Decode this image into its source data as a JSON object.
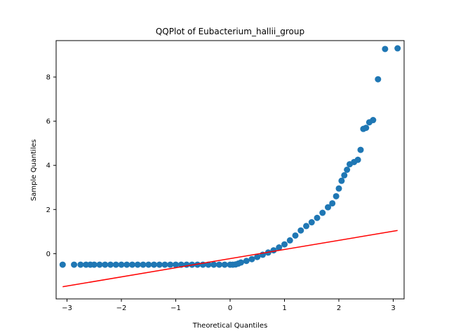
{
  "chart_data": {
    "type": "scatter",
    "title": "QQPlot of Eubacterium_hallii_group",
    "xlabel": "Theoretical Quantiles",
    "ylabel": "Sample Quantiles",
    "xlim": [
      -3.2,
      3.2
    ],
    "ylim": [
      -2.05,
      9.65
    ],
    "xticks": [
      -3,
      -2,
      -1,
      0,
      1,
      2,
      3
    ],
    "yticks": [
      0,
      2,
      4,
      6,
      8
    ],
    "grid": false,
    "legend": "none",
    "colors": {
      "points": "#1f77b4",
      "line": "#ff0000"
    },
    "points": [
      [
        -3.08,
        -0.5
      ],
      [
        -2.87,
        -0.5
      ],
      [
        -2.75,
        -0.5
      ],
      [
        -2.65,
        -0.5
      ],
      [
        -2.57,
        -0.5
      ],
      [
        -2.5,
        -0.5
      ],
      [
        -2.4,
        -0.5
      ],
      [
        -2.3,
        -0.5
      ],
      [
        -2.2,
        -0.5
      ],
      [
        -2.1,
        -0.5
      ],
      [
        -2.0,
        -0.5
      ],
      [
        -1.9,
        -0.5
      ],
      [
        -1.8,
        -0.5
      ],
      [
        -1.7,
        -0.5
      ],
      [
        -1.6,
        -0.5
      ],
      [
        -1.5,
        -0.5
      ],
      [
        -1.4,
        -0.5
      ],
      [
        -1.3,
        -0.5
      ],
      [
        -1.2,
        -0.5
      ],
      [
        -1.1,
        -0.5
      ],
      [
        -1.0,
        -0.5
      ],
      [
        -0.9,
        -0.5
      ],
      [
        -0.8,
        -0.5
      ],
      [
        -0.7,
        -0.5
      ],
      [
        -0.6,
        -0.5
      ],
      [
        -0.5,
        -0.5
      ],
      [
        -0.4,
        -0.5
      ],
      [
        -0.3,
        -0.5
      ],
      [
        -0.2,
        -0.5
      ],
      [
        -0.1,
        -0.5
      ],
      [
        0.0,
        -0.5
      ],
      [
        0.05,
        -0.5
      ],
      [
        0.1,
        -0.49
      ],
      [
        0.15,
        -0.45
      ],
      [
        0.2,
        -0.4
      ],
      [
        0.3,
        -0.33
      ],
      [
        0.4,
        -0.25
      ],
      [
        0.5,
        -0.15
      ],
      [
        0.6,
        -0.05
      ],
      [
        0.7,
        0.05
      ],
      [
        0.8,
        0.15
      ],
      [
        0.9,
        0.28
      ],
      [
        1.0,
        0.42
      ],
      [
        1.1,
        0.6
      ],
      [
        1.2,
        0.82
      ],
      [
        1.3,
        1.05
      ],
      [
        1.4,
        1.25
      ],
      [
        1.5,
        1.42
      ],
      [
        1.6,
        1.62
      ],
      [
        1.7,
        1.85
      ],
      [
        1.8,
        2.1
      ],
      [
        1.88,
        2.28
      ],
      [
        1.95,
        2.6
      ],
      [
        2.0,
        2.95
      ],
      [
        2.05,
        3.3
      ],
      [
        2.1,
        3.55
      ],
      [
        2.15,
        3.8
      ],
      [
        2.2,
        4.05
      ],
      [
        2.28,
        4.15
      ],
      [
        2.35,
        4.25
      ],
      [
        2.4,
        4.7
      ],
      [
        2.45,
        5.65
      ],
      [
        2.5,
        5.7
      ],
      [
        2.56,
        5.95
      ],
      [
        2.63,
        6.05
      ],
      [
        2.72,
        7.9
      ],
      [
        2.85,
        9.27
      ],
      [
        3.08,
        9.3
      ]
    ],
    "reference_line": {
      "x": [
        -3.08,
        3.08
      ],
      "y": [
        -1.5,
        1.05
      ]
    }
  }
}
